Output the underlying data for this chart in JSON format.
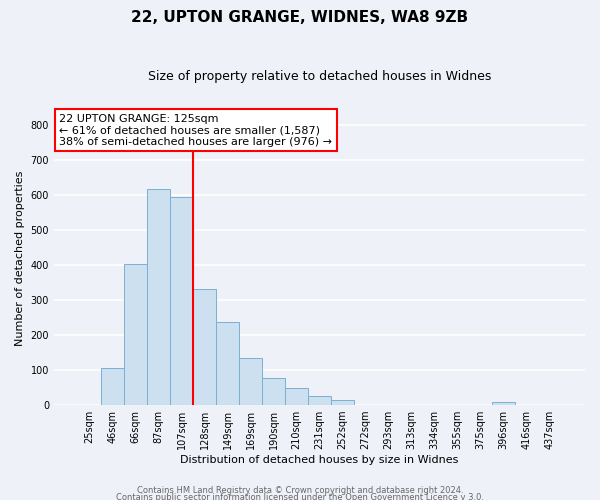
{
  "title": "22, UPTON GRANGE, WIDNES, WA8 9ZB",
  "subtitle": "Size of property relative to detached houses in Widnes",
  "xlabel": "Distribution of detached houses by size in Widnes",
  "ylabel": "Number of detached properties",
  "bar_labels": [
    "25sqm",
    "46sqm",
    "66sqm",
    "87sqm",
    "107sqm",
    "128sqm",
    "149sqm",
    "169sqm",
    "190sqm",
    "210sqm",
    "231sqm",
    "252sqm",
    "272sqm",
    "293sqm",
    "313sqm",
    "334sqm",
    "355sqm",
    "375sqm",
    "396sqm",
    "416sqm",
    "437sqm"
  ],
  "bar_values": [
    0,
    105,
    403,
    615,
    593,
    330,
    237,
    135,
    76,
    49,
    25,
    15,
    0,
    0,
    0,
    0,
    0,
    0,
    8,
    0,
    0
  ],
  "bar_color": "#cce0f0",
  "bar_edge_color": "#7ab0d4",
  "vline_index": 5,
  "vline_color": "red",
  "annotation_title": "22 UPTON GRANGE: 125sqm",
  "annotation_line1": "← 61% of detached houses are smaller (1,587)",
  "annotation_line2": "38% of semi-detached houses are larger (976) →",
  "annotation_box_color": "white",
  "annotation_box_edge": "red",
  "ylim": [
    0,
    840
  ],
  "yticks": [
    0,
    100,
    200,
    300,
    400,
    500,
    600,
    700,
    800
  ],
  "footer1": "Contains HM Land Registry data © Crown copyright and database right 2024.",
  "footer2": "Contains public sector information licensed under the Open Government Licence v 3.0.",
  "background_color": "#eef2f8",
  "grid_color": "white",
  "title_fontsize": 11,
  "subtitle_fontsize": 9,
  "axis_label_fontsize": 8,
  "tick_fontsize": 7,
  "annotation_fontsize": 8
}
